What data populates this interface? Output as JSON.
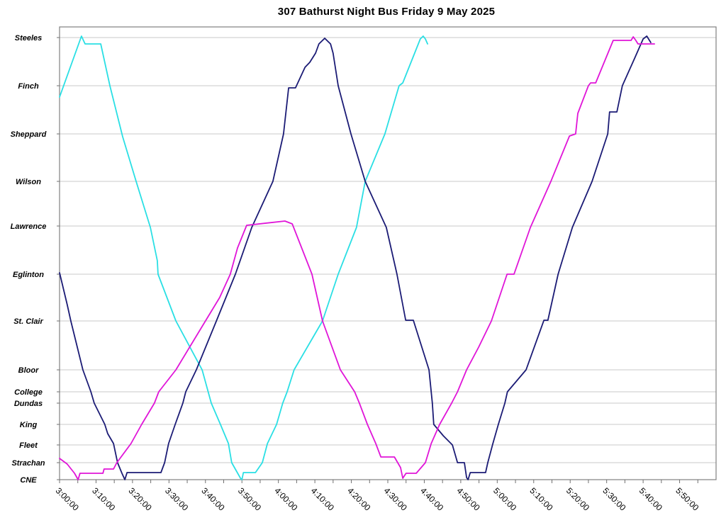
{
  "title": "307 Bathurst Night Bus Friday 9 May 2025",
  "chart_data": {
    "type": "line",
    "title": "307 Bathurst Night Bus Friday 9 May 2025",
    "legend": "none",
    "grid": "horizontal",
    "x_axis": {
      "unit": "time-of-day",
      "start": "3:00:00",
      "end": "6:00:00",
      "total_minutes": 180,
      "label_interval_min": 10,
      "minor_tick_min": 5,
      "labels": [
        "3:00:00",
        "3:10:00",
        "3:20:00",
        "3:30:00",
        "3:40:00",
        "3:50:00",
        "4:00:00",
        "4:10:00",
        "4:20:00",
        "4:30:00",
        "4:40:00",
        "4:50:00",
        "5:00:00",
        "5:10:00",
        "5:20:00",
        "5:30:00",
        "5:40:00",
        "5:50:00"
      ]
    },
    "y_axis": {
      "unit": "route-position (CNE=0, Steeles=624)",
      "stations": [
        {
          "label": "Steeles",
          "pos": 624
        },
        {
          "label": "Finch",
          "pos": 556
        },
        {
          "label": "Sheppard",
          "pos": 488
        },
        {
          "label": "Wilson",
          "pos": 421
        },
        {
          "label": "Lawrence",
          "pos": 358
        },
        {
          "label": "Eglinton",
          "pos": 290
        },
        {
          "label": "St. Clair",
          "pos": 224
        },
        {
          "label": "Bloor",
          "pos": 155
        },
        {
          "label": "College",
          "pos": 124
        },
        {
          "label": "Dundas",
          "pos": 108
        },
        {
          "label": "King",
          "pos": 78
        },
        {
          "label": "Fleet",
          "pos": 49
        },
        {
          "label": "Strachan",
          "pos": 24
        },
        {
          "label": "CNE",
          "pos": 0
        }
      ]
    },
    "series": [
      {
        "name": "bus-1-cyan",
        "color": "#2adfe4",
        "points": [
          [
            0,
            540
          ],
          [
            6,
            626
          ],
          [
            7,
            615
          ],
          [
            11.3,
            615
          ],
          [
            13.8,
            556
          ],
          [
            17.3,
            484
          ],
          [
            21,
            421
          ],
          [
            24.9,
            356
          ],
          [
            26.8,
            309
          ],
          [
            27,
            290
          ],
          [
            31.9,
            224
          ],
          [
            39.1,
            155
          ],
          [
            41.6,
            108
          ],
          [
            44.1,
            78
          ],
          [
            46.3,
            51
          ],
          [
            47.2,
            24
          ],
          [
            49.6,
            2
          ],
          [
            50,
            0
          ],
          [
            50.4,
            10
          ],
          [
            53.7,
            10
          ],
          [
            55.6,
            24
          ],
          [
            57,
            51
          ],
          [
            59.5,
            78
          ],
          [
            61.2,
            108
          ],
          [
            62.4,
            124
          ],
          [
            64.3,
            155
          ],
          [
            72.1,
            224
          ],
          [
            76.4,
            290
          ],
          [
            81.4,
            356
          ],
          [
            83.8,
            421
          ],
          [
            89.2,
            488
          ],
          [
            93.1,
            556
          ],
          [
            94.1,
            560
          ],
          [
            98.9,
            622
          ],
          [
            99.7,
            626
          ],
          [
            100.3,
            622
          ],
          [
            100.9,
            615
          ]
        ]
      },
      {
        "name": "bus-2-navy",
        "color": "#1b1b75",
        "points": [
          [
            0,
            292
          ],
          [
            2.1,
            247
          ],
          [
            3.1,
            224
          ],
          [
            6.4,
            155
          ],
          [
            8.6,
            124
          ],
          [
            9.5,
            108
          ],
          [
            12.4,
            78
          ],
          [
            13.2,
            65
          ],
          [
            14.8,
            51
          ],
          [
            15.9,
            24
          ],
          [
            17.1,
            9
          ],
          [
            17.9,
            0
          ],
          [
            18.5,
            10
          ],
          [
            27.8,
            10
          ],
          [
            28.8,
            24
          ],
          [
            29.9,
            51
          ],
          [
            31.7,
            78
          ],
          [
            33.8,
            108
          ],
          [
            34.6,
            124
          ],
          [
            37.5,
            155
          ],
          [
            43,
            224
          ],
          [
            48.2,
            290
          ],
          [
            52.7,
            356
          ],
          [
            58.5,
            421
          ],
          [
            61.4,
            488
          ],
          [
            62.8,
            553
          ],
          [
            64.7,
            553
          ],
          [
            67.3,
            582
          ],
          [
            68.6,
            589
          ],
          [
            70.2,
            602
          ],
          [
            71.1,
            615
          ],
          [
            72.7,
            623
          ],
          [
            74.3,
            615
          ],
          [
            75,
            602
          ],
          [
            76.4,
            556
          ],
          [
            79.9,
            488
          ],
          [
            83.8,
            421
          ],
          [
            89.6,
            356
          ],
          [
            92.5,
            290
          ],
          [
            94.9,
            225
          ],
          [
            97,
            225
          ],
          [
            101.3,
            155
          ],
          [
            101.9,
            124
          ],
          [
            102.2,
            108
          ],
          [
            102.6,
            78
          ],
          [
            105.2,
            62
          ],
          [
            107.7,
            49
          ],
          [
            109.1,
            24
          ],
          [
            111,
            24
          ],
          [
            111.6,
            3
          ],
          [
            112,
            0
          ],
          [
            112.6,
            10
          ],
          [
            116.8,
            10
          ],
          [
            117.4,
            24
          ],
          [
            118.8,
            51
          ],
          [
            120.3,
            78
          ],
          [
            122.1,
            108
          ],
          [
            122.8,
            124
          ],
          [
            127.9,
            155
          ],
          [
            132.8,
            225
          ],
          [
            133.9,
            225
          ],
          [
            136.7,
            290
          ],
          [
            140.6,
            356
          ],
          [
            146,
            421
          ],
          [
            150.3,
            488
          ],
          [
            150.8,
            519
          ],
          [
            152.8,
            519
          ],
          [
            154.3,
            556
          ],
          [
            157.6,
            594
          ],
          [
            160,
            622
          ],
          [
            161,
            626
          ],
          [
            162.1,
            617
          ]
        ]
      },
      {
        "name": "bus-3-magenta",
        "color": "#e015d8",
        "points": [
          [
            0,
            30
          ],
          [
            2.1,
            22
          ],
          [
            4.1,
            9
          ],
          [
            5.1,
            0
          ],
          [
            5.6,
            9
          ],
          [
            11.9,
            9
          ],
          [
            12.2,
            15
          ],
          [
            14.8,
            15
          ],
          [
            15.7,
            24
          ],
          [
            19.6,
            51
          ],
          [
            22.5,
            78
          ],
          [
            26,
            108
          ],
          [
            27.2,
            124
          ],
          [
            31.9,
            155
          ],
          [
            40,
            224
          ],
          [
            43.9,
            257
          ],
          [
            46.8,
            290
          ],
          [
            48.8,
            327
          ],
          [
            51.3,
            359
          ],
          [
            61.8,
            365
          ],
          [
            63.8,
            361
          ],
          [
            69.2,
            290
          ],
          [
            72.1,
            224
          ],
          [
            77,
            155
          ],
          [
            80.9,
            124
          ],
          [
            82.2,
            108
          ],
          [
            84.4,
            78
          ],
          [
            86.7,
            51
          ],
          [
            88.1,
            32
          ],
          [
            91.8,
            32
          ],
          [
            93.5,
            17
          ],
          [
            94.1,
            2
          ],
          [
            95,
            9
          ],
          [
            97.8,
            9
          ],
          [
            100.3,
            24
          ],
          [
            101.9,
            51
          ],
          [
            104.2,
            78
          ],
          [
            107.5,
            108
          ],
          [
            109.1,
            124
          ],
          [
            111.6,
            155
          ],
          [
            114.9,
            187
          ],
          [
            118.4,
            224
          ],
          [
            122.7,
            290
          ],
          [
            124.6,
            290
          ],
          [
            129.1,
            356
          ],
          [
            134.7,
            421
          ],
          [
            139.8,
            485
          ],
          [
            141.5,
            488
          ],
          [
            142.1,
            517
          ],
          [
            145,
            556
          ],
          [
            145.6,
            560
          ],
          [
            147,
            560
          ],
          [
            151.8,
            620
          ],
          [
            156.7,
            620
          ],
          [
            157.3,
            625
          ],
          [
            158,
            620
          ],
          [
            158.6,
            615
          ],
          [
            163.1,
            615
          ]
        ]
      }
    ],
    "plot_colors": {
      "border": "#808080",
      "gridline": "#c8c8c8",
      "tick": "#707070",
      "background": "#ffffff"
    }
  }
}
